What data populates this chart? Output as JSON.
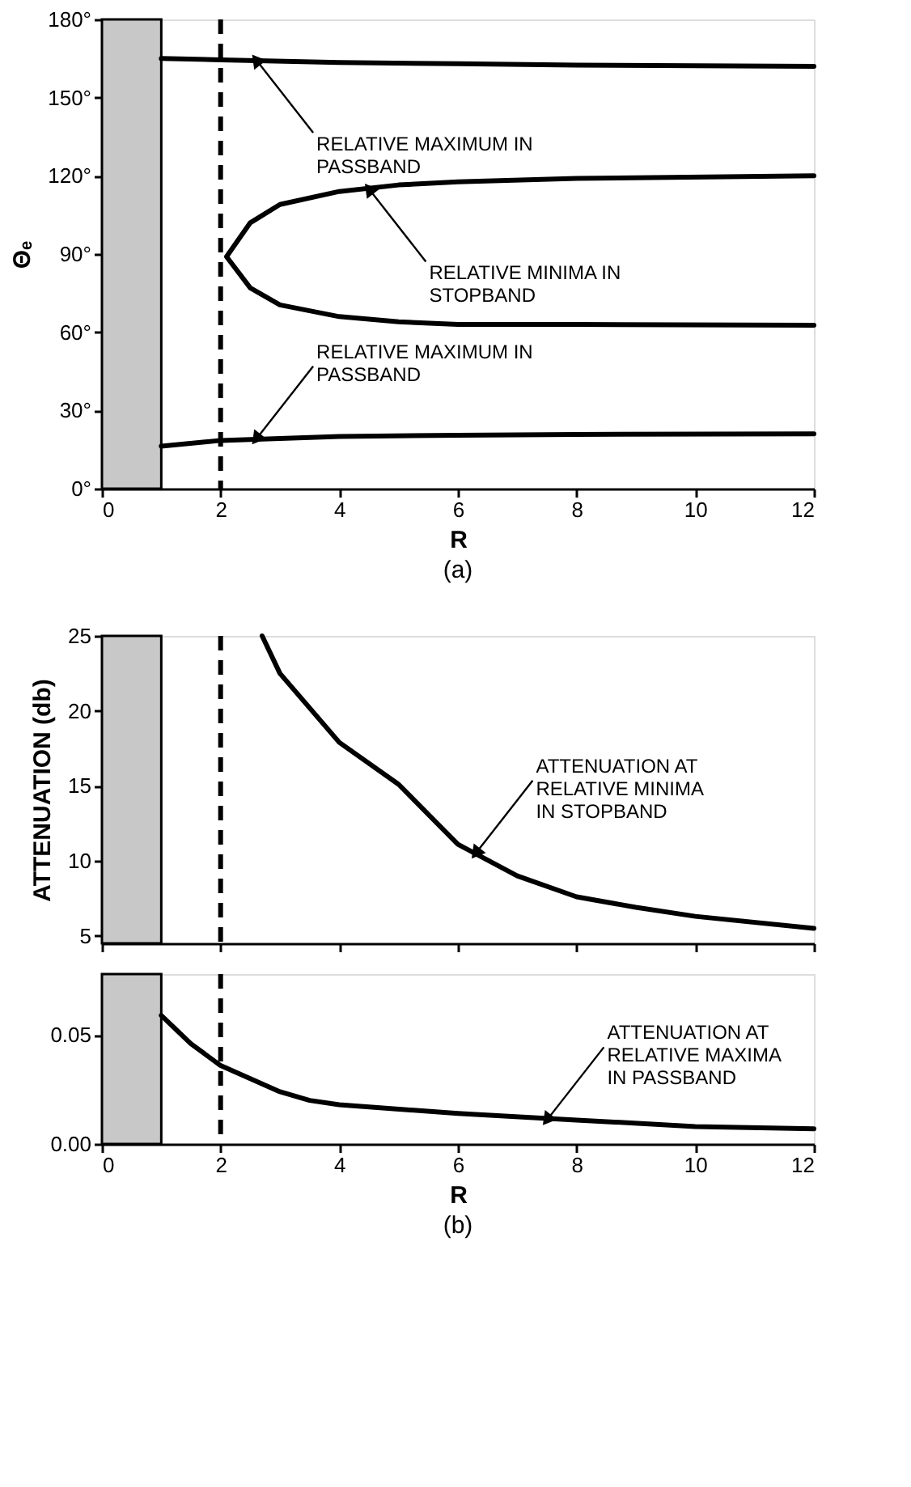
{
  "chart_data": [
    {
      "type": "line",
      "title": "(a)",
      "xlabel": "R",
      "ylabel": "Θₑ",
      "xlim": [
        0,
        12
      ],
      "xticks": [
        0,
        2,
        4,
        6,
        8,
        10,
        12
      ],
      "ylim": [
        0,
        180
      ],
      "yticks": [
        {
          "value": 0,
          "label": "0°"
        },
        {
          "value": 30,
          "label": "30°"
        },
        {
          "value": 60,
          "label": "60°"
        },
        {
          "value": 90,
          "label": "90°"
        },
        {
          "value": 120,
          "label": "120°"
        },
        {
          "value": 150,
          "label": "150°"
        },
        {
          "value": 180,
          "label": "180°"
        }
      ],
      "grid": false,
      "line_style": "solid",
      "series": [
        {
          "color": "#000000",
          "x": [
            1,
            2,
            4,
            6,
            8,
            12
          ],
          "values": [
            165,
            164.5,
            163.5,
            163,
            162.5,
            162
          ]
        },
        {
          "color": "#000000",
          "x": [
            12,
            8,
            6,
            5,
            4,
            3,
            2.5,
            2.1,
            2.5,
            3,
            4,
            5,
            6,
            8,
            12
          ],
          "values": [
            120,
            119,
            117.7,
            116.5,
            114,
            109,
            102,
            89,
            77,
            70.5,
            66,
            64,
            63,
            63,
            62.7
          ]
        },
        {
          "color": "#000000",
          "x": [
            1,
            2,
            4,
            6,
            8,
            12
          ],
          "values": [
            16.3,
            18.5,
            20,
            20.5,
            20.8,
            21
          ]
        }
      ],
      "bands": [
        {
          "axis": "x",
          "from": 0,
          "to": 1,
          "color": "#c8c8c8"
        }
      ],
      "ref_lines": [
        {
          "axis": "x",
          "value": 2,
          "line_style": "dashed",
          "color": "#000000"
        }
      ],
      "annotations": [
        {
          "text": "RELATIVE MAXIMUM IN\nPASSBAND",
          "x": 2.6,
          "y": 164.5
        },
        {
          "text": "RELATIVE MINIMA IN\nSTOPBAND",
          "x": 4.5,
          "y": 115
        },
        {
          "text": "RELATIVE MAXIMUM IN\nPASSBAND",
          "x": 2.6,
          "y": 19
        }
      ]
    },
    {
      "type": "line",
      "ylabel": "ATTENUATION (db)",
      "xlim": [
        0,
        12
      ],
      "xticks": [
        0,
        2,
        4,
        6,
        8,
        10,
        12
      ],
      "ylim": [
        4.5,
        25
      ],
      "yticks": [
        5,
        10,
        15,
        20,
        25
      ],
      "tick_labels": "y",
      "grid": false,
      "line_style": "solid",
      "series": [
        {
          "color": "#000000",
          "x": [
            2.7,
            3,
            4,
            5,
            6,
            7,
            8,
            9,
            10,
            12
          ],
          "values": [
            25,
            22.5,
            17.9,
            15.1,
            11.1,
            9.0,
            7.6,
            6.9,
            6.3,
            5.5
          ]
        }
      ],
      "bands": [
        {
          "axis": "x",
          "from": 0,
          "to": 1,
          "color": "#c8c8c8"
        }
      ],
      "ref_lines": [
        {
          "axis": "x",
          "value": 2,
          "line_style": "dashed",
          "color": "#000000"
        }
      ],
      "annotations": [
        {
          "text": "ATTENUATION AT\nRELATIVE MINIMA\nIN STOPBAND",
          "x": 6.3,
          "y": 10.5
        }
      ]
    },
    {
      "type": "line",
      "title": "(b)",
      "xlabel": "R",
      "xlim": [
        0,
        12
      ],
      "xticks": [
        0,
        2,
        4,
        6,
        8,
        10,
        12
      ],
      "ylim": [
        0,
        0.078
      ],
      "yticks": [
        {
          "value": 0,
          "label": "0.00"
        },
        {
          "value": 0.05,
          "label": "0.05"
        }
      ],
      "grid": false,
      "line_style": "solid",
      "series": [
        {
          "color": "#000000",
          "x": [
            1,
            1.5,
            2,
            3,
            3.5,
            4,
            6,
            8,
            10,
            12
          ],
          "values": [
            0.059,
            0.046,
            0.036,
            0.024,
            0.02,
            0.018,
            0.014,
            0.011,
            0.008,
            0.007
          ]
        }
      ],
      "bands": [
        {
          "axis": "x",
          "from": 0,
          "to": 1,
          "color": "#c8c8c8"
        }
      ],
      "ref_lines": [
        {
          "axis": "x",
          "value": 2,
          "line_style": "dashed",
          "color": "#000000"
        }
      ],
      "annotations": [
        {
          "text": "ATTENUATION AT\nRELATIVE MAXIMA\nIN PASSBAND",
          "x": 7.5,
          "y": 0.011
        }
      ]
    }
  ]
}
